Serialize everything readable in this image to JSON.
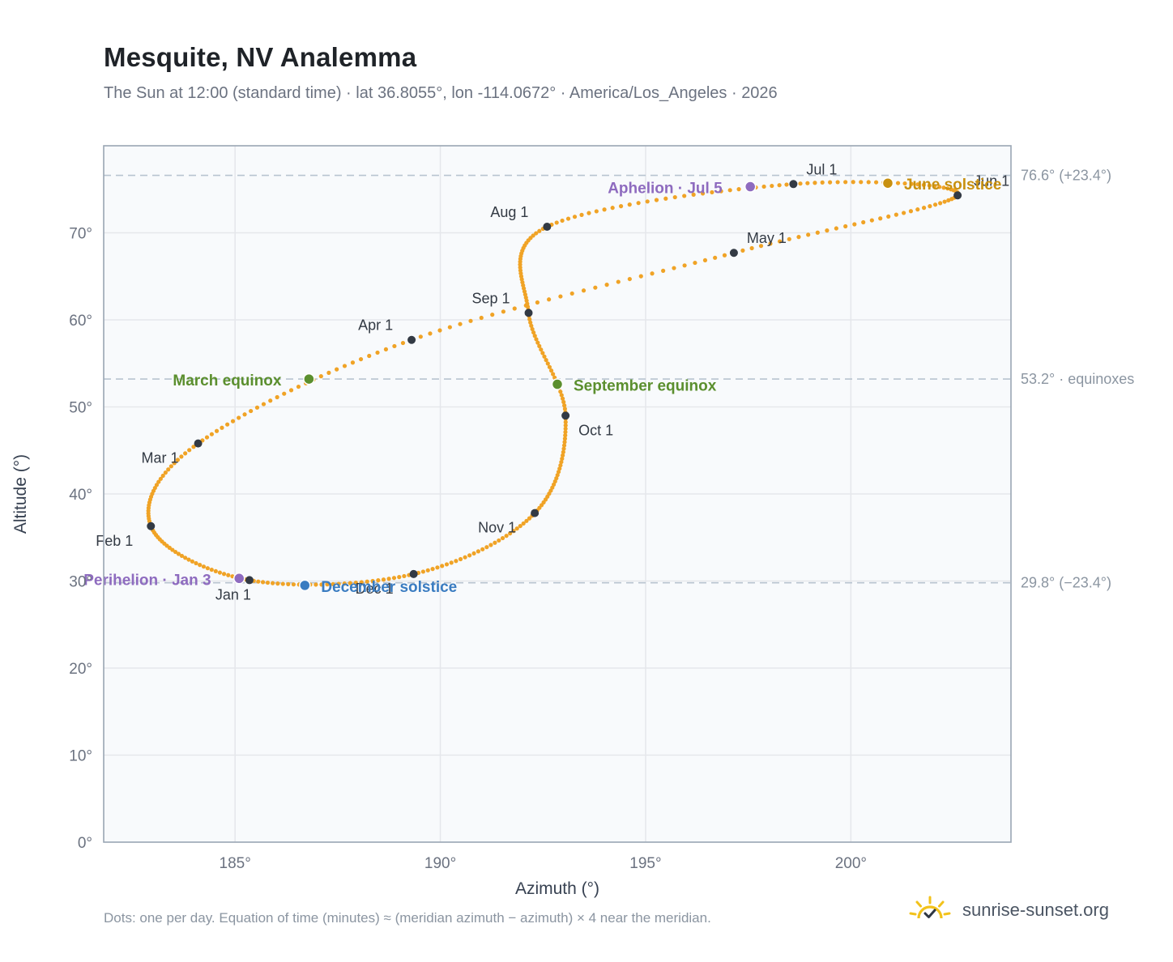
{
  "title": "Mesquite, NV Analemma",
  "subtitle": "The Sun at 12:00 (standard time) · lat 36.8055°, lon -114.0672° · America/Los_Angeles · 2026",
  "footnote": "Dots: one per day. Equation of time (minutes) ≈ (meridian azimuth − azimuth) × 4 near the meridian.",
  "brand": {
    "name": "sunrise-sunset.org",
    "icon": "sun-check-icon"
  },
  "colors": {
    "curve": "#f0a326",
    "month_marker": "#333a44",
    "equinox": "#5b8f2e",
    "june_solstice": "#c8900f",
    "december_solstice": "#3a7cc1",
    "apsis": "#8e6bbf",
    "grid": "#e5e7eb",
    "reference_line": "#b8c4d0",
    "plot_bg": "#f8fafc"
  },
  "chart_data": {
    "type": "scatter",
    "xlabel": "Azimuth (°)",
    "ylabel": "Altitude (°)",
    "xlim": [
      181.8,
      203.9
    ],
    "ylim": [
      0,
      80
    ],
    "x_ticks": [
      185,
      190,
      195,
      200
    ],
    "x_tick_labels": [
      "185°",
      "190°",
      "195°",
      "200°"
    ],
    "y_ticks": [
      0,
      10,
      20,
      30,
      40,
      50,
      60,
      70
    ],
    "y_tick_labels": [
      "0°",
      "10°",
      "20°",
      "30°",
      "40°",
      "50°",
      "60°",
      "70°"
    ],
    "grid": true,
    "reference_lines": [
      {
        "altitude": 76.6,
        "label": "76.6° (+23.4°)"
      },
      {
        "altitude": 53.2,
        "label": "53.2° · equinoxes"
      },
      {
        "altitude": 29.8,
        "label": "29.8° (−23.4°)"
      }
    ],
    "month_markers": [
      {
        "label": "Jan 1",
        "az": 185.35,
        "alt": 30.1
      },
      {
        "label": "Feb 1",
        "az": 182.95,
        "alt": 36.3
      },
      {
        "label": "Mar 1",
        "az": 184.1,
        "alt": 45.8
      },
      {
        "label": "Apr 1",
        "az": 189.3,
        "alt": 57.7
      },
      {
        "label": "May 1",
        "az": 197.15,
        "alt": 67.7
      },
      {
        "label": "Jun 1",
        "az": 202.6,
        "alt": 74.3
      },
      {
        "label": "Jul 1",
        "az": 198.6,
        "alt": 75.6
      },
      {
        "label": "Aug 1",
        "az": 192.6,
        "alt": 70.7
      },
      {
        "label": "Sep 1",
        "az": 192.15,
        "alt": 60.8
      },
      {
        "label": "Oct 1",
        "az": 193.05,
        "alt": 49.0
      },
      {
        "label": "Nov 1",
        "az": 192.3,
        "alt": 37.8
      },
      {
        "label": "Dec 1",
        "az": 189.35,
        "alt": 30.8
      }
    ],
    "events": [
      {
        "label": "March equinox",
        "az": 186.8,
        "alt": 53.2,
        "kind": "equinox"
      },
      {
        "label": "June solstice",
        "az": 200.9,
        "alt": 75.7,
        "kind": "june_solstice"
      },
      {
        "label": "September equinox",
        "az": 192.85,
        "alt": 52.6,
        "kind": "equinox"
      },
      {
        "label": "December solstice",
        "az": 186.7,
        "alt": 29.5,
        "kind": "december_solstice"
      },
      {
        "label": "Perihelion · Jan 3",
        "az": 185.1,
        "alt": 30.3,
        "kind": "apsis"
      },
      {
        "label": "Aphelion · Jul 5",
        "az": 197.55,
        "alt": 75.3,
        "kind": "apsis"
      }
    ]
  }
}
